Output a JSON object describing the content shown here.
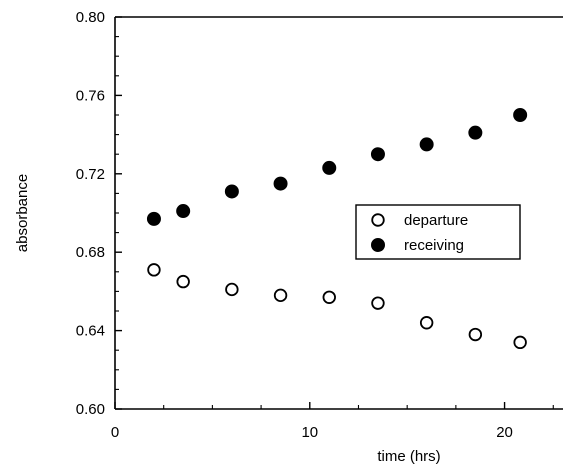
{
  "chart_data": {
    "type": "scatter",
    "title": "",
    "xlabel": "time (hrs)",
    "ylabel": "absorbance",
    "xlim": [
      0,
      23
    ],
    "ylim": [
      0.6,
      0.8
    ],
    "x_ticks": [
      0,
      10,
      20
    ],
    "x_tick_labels": [
      "0",
      "10",
      "20"
    ],
    "y_ticks": [
      0.6,
      0.64,
      0.68,
      0.72,
      0.76,
      0.8
    ],
    "y_tick_labels": [
      "0.60",
      "0.64",
      "0.68",
      "0.72",
      "0.76",
      "0.80"
    ],
    "grid": false,
    "legend_position": "right-center",
    "series": [
      {
        "name": "departure",
        "marker": "open-circle",
        "color": "#000000",
        "x": [
          2.0,
          3.5,
          6.0,
          8.5,
          11.0,
          13.5,
          16.0,
          18.5,
          20.8
        ],
        "y": [
          0.671,
          0.665,
          0.661,
          0.658,
          0.657,
          0.654,
          0.644,
          0.638,
          0.634
        ]
      },
      {
        "name": "receiving",
        "marker": "filled-circle",
        "color": "#000000",
        "x": [
          2.0,
          3.5,
          6.0,
          8.5,
          11.0,
          13.5,
          16.0,
          18.5,
          20.8
        ],
        "y": [
          0.697,
          0.701,
          0.711,
          0.715,
          0.723,
          0.73,
          0.735,
          0.741,
          0.75
        ]
      }
    ]
  }
}
